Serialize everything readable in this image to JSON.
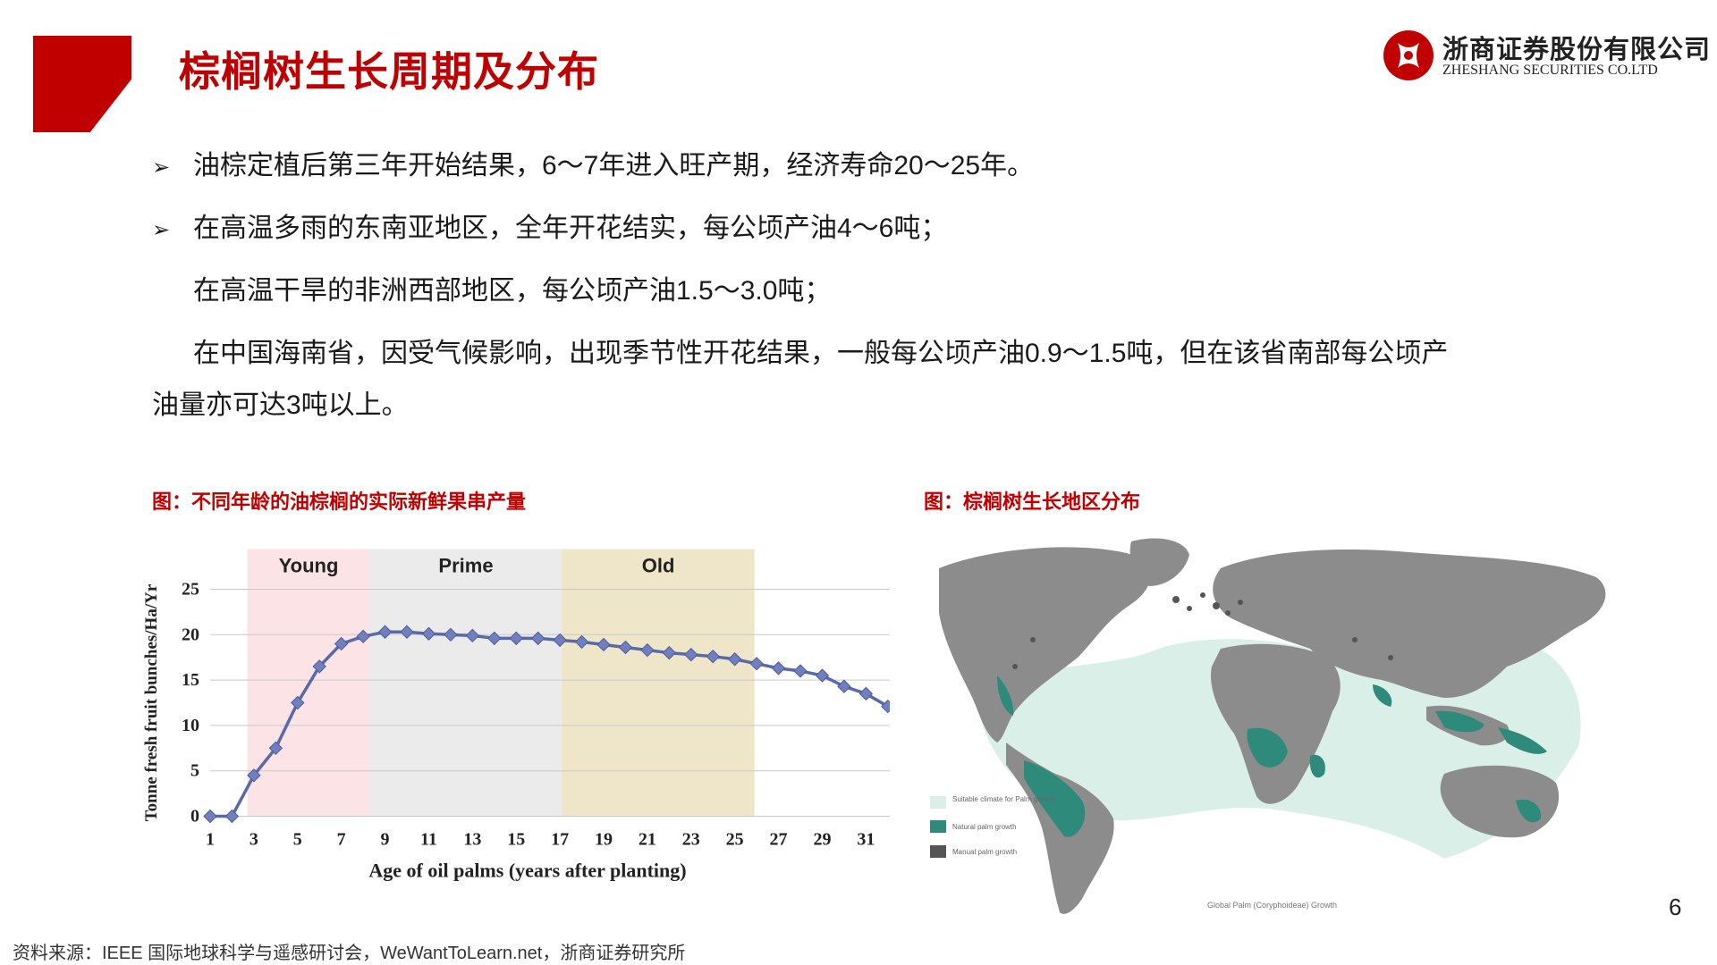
{
  "slide": {
    "title": "棕榈树生长周期及分布",
    "page_number": "6",
    "source": "资料来源：IEEE 国际地球科学与遥感研讨会，WeWantToLearn.net，浙商证券研究所"
  },
  "logo": {
    "name_cn": "浙商证券股份有限公司",
    "name_en": "ZHESHANG SECURITIES CO.LTD",
    "brand_color": "#c00000"
  },
  "bullets": {
    "arrow": "➢",
    "line1": "油棕定植后第三年开始结果，6～7年进入旺产期，经济寿命20～25年。",
    "line2": "在高温多雨的东南亚地区，全年开花结实，每公顷产油4～6吨；",
    "line3": "在高温干旱的非洲西部地区，每公顷产油1.5～3.0吨；",
    "line4": "在中国海南省，因受气候影响，出现季节性开花结果，一般每公顷产油0.9～1.5吨，但在该省南部每公顷产",
    "line5": "油量亦可达3吨以上。"
  },
  "figures": {
    "chart_caption": "图：不同年龄的油棕榈的实际新鲜果串产量",
    "map_caption": "图：棕榈树生长地区分布"
  },
  "chart_data": {
    "type": "line",
    "ylabel": "Tonne fresh fruit  bunches/Ha/Yr",
    "xlabel": "Age of oil palms (years after planting)",
    "ylim": [
      0,
      25
    ],
    "yticks": [
      0,
      5,
      10,
      15,
      20,
      25
    ],
    "xticks": [
      1,
      3,
      5,
      7,
      9,
      11,
      13,
      15,
      17,
      19,
      21,
      23,
      25,
      27,
      29,
      31
    ],
    "x": [
      1,
      2,
      3,
      4,
      5,
      6,
      7,
      8,
      9,
      10,
      11,
      12,
      13,
      14,
      15,
      16,
      17,
      18,
      19,
      20,
      21,
      22,
      23,
      24,
      25,
      26,
      27,
      28,
      29,
      30,
      31,
      32
    ],
    "series": [
      {
        "values": [
          0,
          0,
          4.5,
          7.5,
          12.5,
          16.5,
          19.0,
          19.8,
          20.3,
          20.3,
          20.1,
          20.0,
          19.9,
          19.6,
          19.6,
          19.6,
          19.4,
          19.2,
          18.9,
          18.6,
          18.3,
          18.0,
          17.8,
          17.6,
          17.3,
          16.8,
          16.3,
          16.0,
          15.5,
          14.3,
          13.5,
          12.1
        ],
        "color": "#5a6aa8",
        "marker": "diamond"
      }
    ],
    "bands": [
      {
        "label": "Young",
        "from": 2.7,
        "to": 8.3,
        "color": "#fbe3e6"
      },
      {
        "label": "Prime",
        "from": 8.3,
        "to": 17.1,
        "color": "#ebebeb"
      },
      {
        "label": "Old",
        "from": 17.1,
        "to": 25.9,
        "color": "#efe6c9"
      }
    ],
    "grid": true
  },
  "map": {
    "colors": {
      "ocean": "#ffffff",
      "land": "#8c8c8c",
      "suitable": "#d9efe8",
      "natural": "#2e8a7a",
      "manual": "#555555"
    },
    "legend": [
      {
        "label": "Suitable climate for Palm growth",
        "key": "suitable"
      },
      {
        "label": "Natural palm growth",
        "key": "natural"
      },
      {
        "label": "Manual palm growth",
        "key": "manual"
      }
    ],
    "caption": "Global Palm (Coryphoideae) Growth"
  }
}
